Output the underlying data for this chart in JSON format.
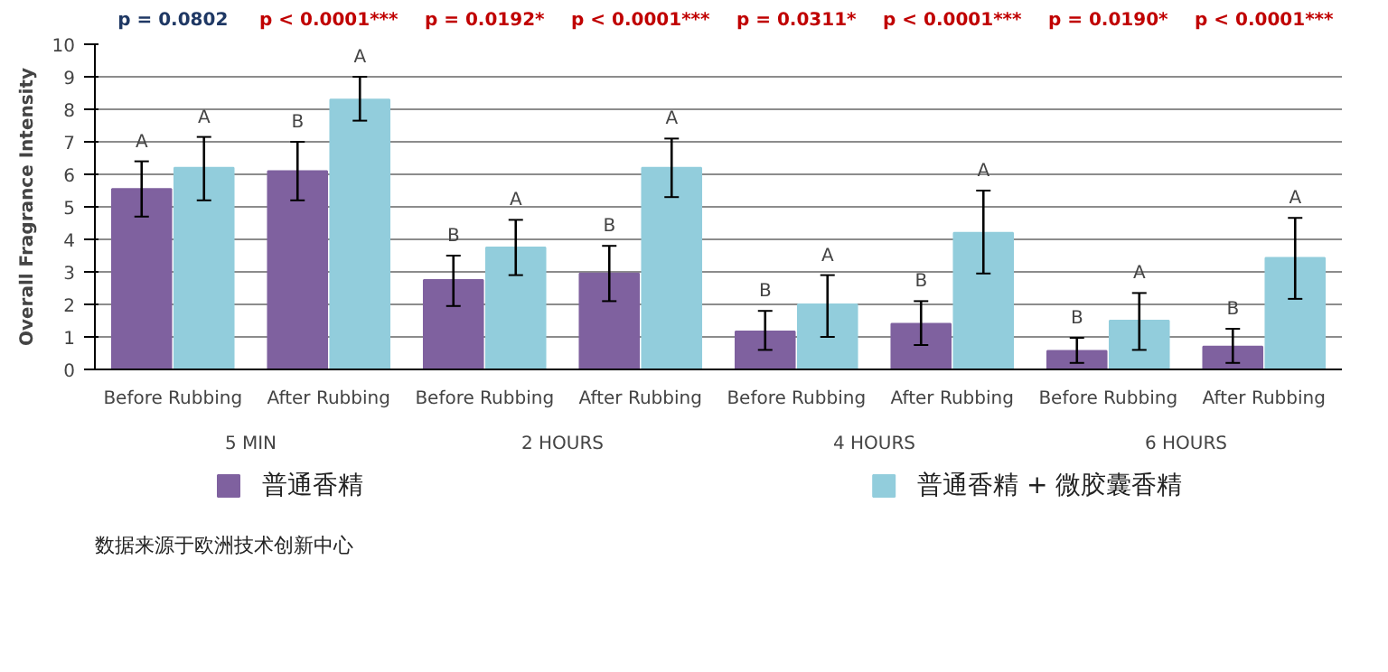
{
  "chart_data": {
    "type": "bar",
    "ylabel": "Overall Fragrance Intensity",
    "categories": [
      "Before Rubbing",
      "After Rubbing",
      "Before Rubbing",
      "After Rubbing",
      "Before Rubbing",
      "After Rubbing",
      "Before Rubbing",
      "After Rubbing"
    ],
    "series": [
      {
        "name": "普通香精",
        "color": "#7f619f",
        "values": [
          5.55,
          6.1,
          2.75,
          2.95,
          1.17,
          1.4,
          0.57,
          0.7
        ],
        "errors": [
          [
            4.7,
            6.4
          ],
          [
            5.2,
            7.0
          ],
          [
            1.95,
            3.5
          ],
          [
            2.1,
            3.8
          ],
          [
            0.6,
            1.8
          ],
          [
            0.75,
            2.1
          ],
          [
            0.2,
            0.97
          ],
          [
            0.2,
            1.25
          ]
        ],
        "value_labels": [
          "A",
          "B",
          "B",
          "B",
          "B",
          "B",
          "B",
          "B"
        ]
      },
      {
        "name": "普通香精 + 微胶囊香精",
        "color": "#92cddc",
        "values": [
          6.2,
          8.3,
          3.75,
          6.2,
          2.0,
          4.2,
          1.5,
          3.43
        ],
        "errors": [
          [
            5.2,
            7.15
          ],
          [
            7.65,
            9.0
          ],
          [
            2.9,
            4.6
          ],
          [
            5.3,
            7.1
          ],
          [
            1.0,
            2.9
          ],
          [
            2.95,
            5.5
          ],
          [
            0.6,
            2.35
          ],
          [
            2.17,
            4.66
          ]
        ],
        "value_labels": [
          "A",
          "A",
          "A",
          "A",
          "A",
          "A",
          "A",
          "A"
        ]
      }
    ],
    "ylim": [
      0,
      10
    ],
    "yticks": [
      0,
      1,
      2,
      3,
      4,
      5,
      6,
      7,
      8,
      9,
      10
    ],
    "grid": "y",
    "legend": "bottom",
    "annotations": [
      "p = 0.0802",
      "p < 0.0001***",
      "p = 0.0192*",
      "p < 0.0001***",
      "p = 0.0311*",
      "p < 0.0001***",
      "p = 0.0190*",
      "p < 0.0001***",
      "5 MIN",
      "2 HOURS",
      "4 HOURS",
      "6 HOURS",
      "数据来源于欧洲技术创新中心"
    ]
  }
}
